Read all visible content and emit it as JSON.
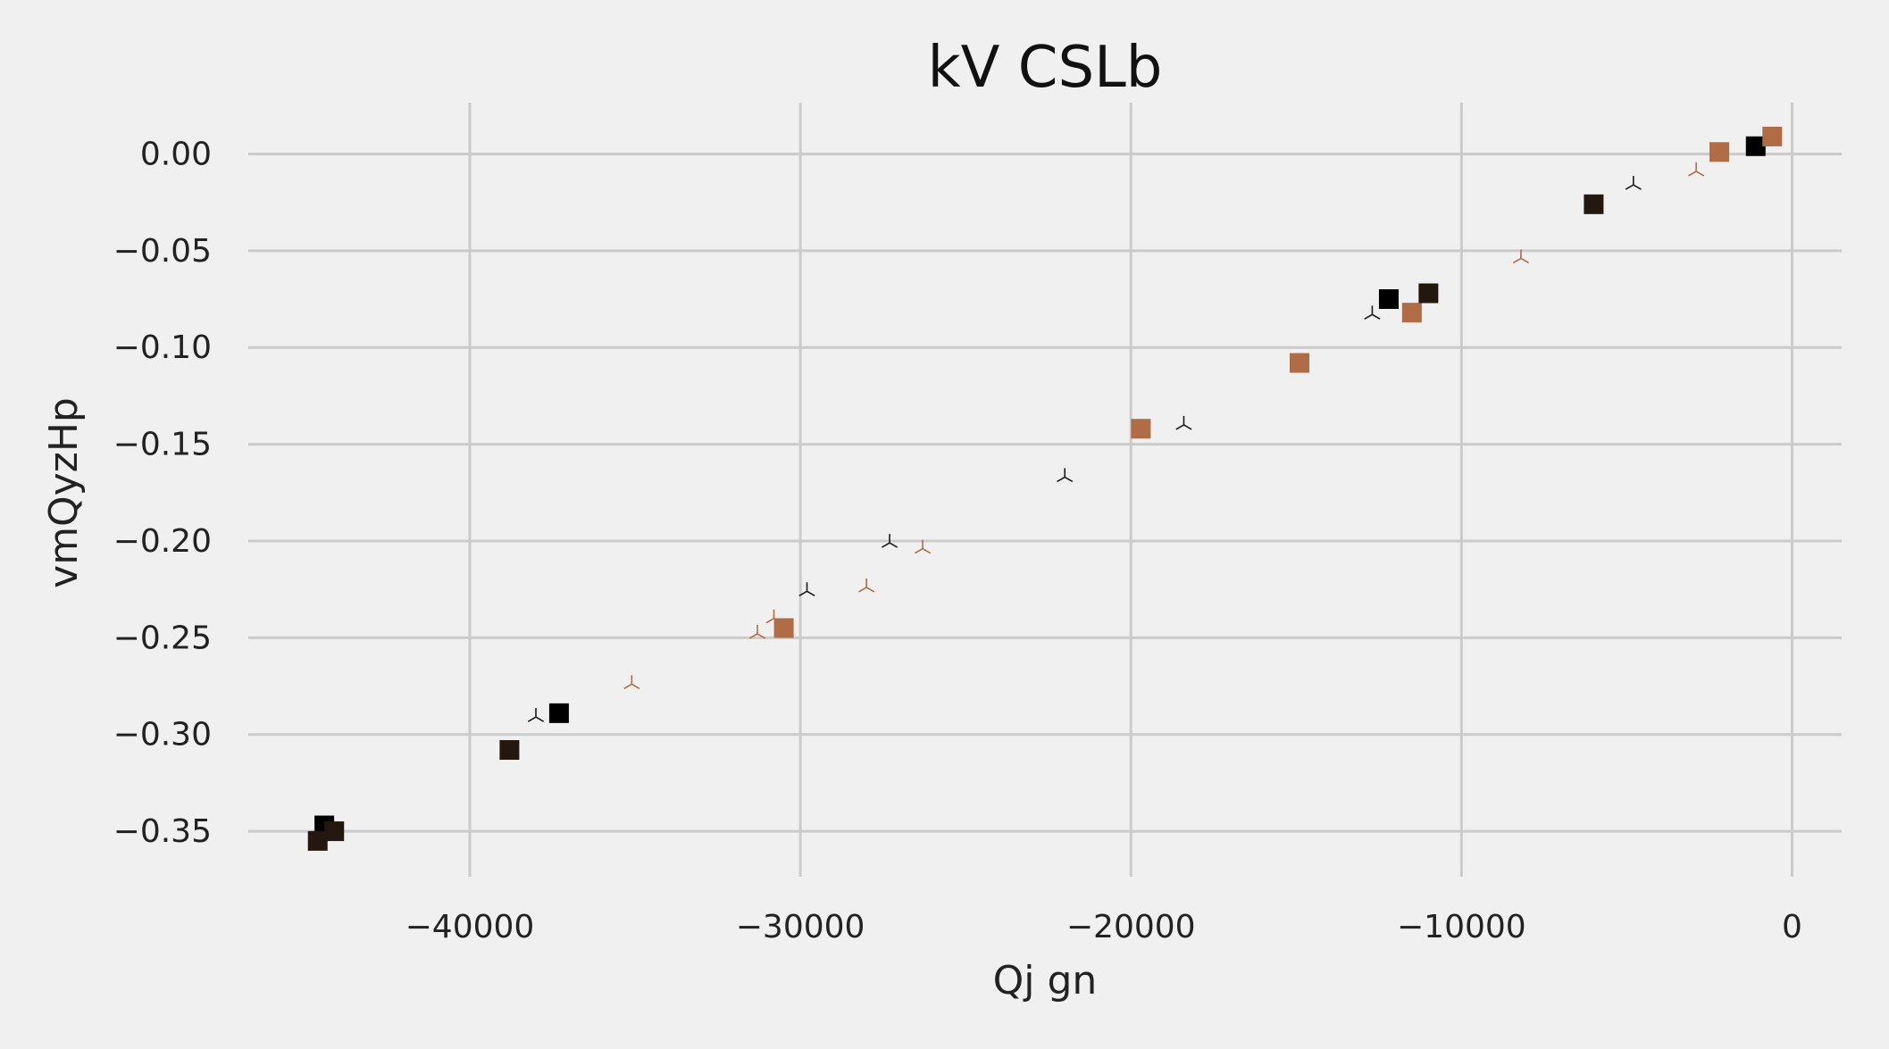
{
  "chart_data": {
    "type": "scatter",
    "title": "kV CSLb",
    "xlabel": "Qj gn",
    "ylabel": "vmQyzHp",
    "xlim": [
      -46700,
      1500
    ],
    "ylim": [
      -0.3735,
      0.0265
    ],
    "xticks": [
      -40000,
      -30000,
      -20000,
      -10000,
      0
    ],
    "xtick_labels": [
      "−40000",
      "−30000",
      "−20000",
      "−10000",
      "0"
    ],
    "yticks": [
      0.0,
      -0.05,
      -0.1,
      -0.15,
      -0.2,
      -0.25,
      -0.3,
      -0.35
    ],
    "ytick_labels": [
      "0.00",
      "−0.05",
      "−0.10",
      "−0.15",
      "−0.20",
      "−0.25",
      "−0.30",
      "−0.35"
    ],
    "grid": true,
    "series": [
      {
        "marker": "square",
        "color": "#000000",
        "x": [
          -1100,
          -12200,
          -37300,
          -44400
        ],
        "y": [
          0.004,
          -0.075,
          -0.289,
          -0.347
        ]
      },
      {
        "marker": "square",
        "color": "#b06c45",
        "x": [
          -600,
          -2200,
          -11500,
          -14900,
          -19700,
          -30500
        ],
        "y": [
          0.009,
          0.001,
          -0.082,
          -0.108,
          -0.142,
          -0.245
        ]
      },
      {
        "marker": "square",
        "color": "#24170f",
        "x": [
          -6000,
          -11000,
          -38800,
          -44100,
          -44600
        ],
        "y": [
          -0.026,
          -0.072,
          -0.308,
          -0.35,
          -0.355
        ]
      },
      {
        "marker": "tri_down",
        "color": "#1a1a1a",
        "x": [
          -4800,
          -12700,
          -18400,
          -22000,
          -27300,
          -29800,
          -38000
        ],
        "y": [
          -0.016,
          -0.083,
          -0.14,
          -0.167,
          -0.201,
          -0.226,
          -0.291
        ]
      },
      {
        "marker": "tri_down",
        "color": "#b06c45",
        "x": [
          -2900,
          -8200,
          -26300,
          -28000,
          -30800,
          -31300,
          -35100
        ],
        "y": [
          -0.009,
          -0.054,
          -0.204,
          -0.224,
          -0.24,
          -0.248,
          -0.274
        ]
      }
    ]
  }
}
